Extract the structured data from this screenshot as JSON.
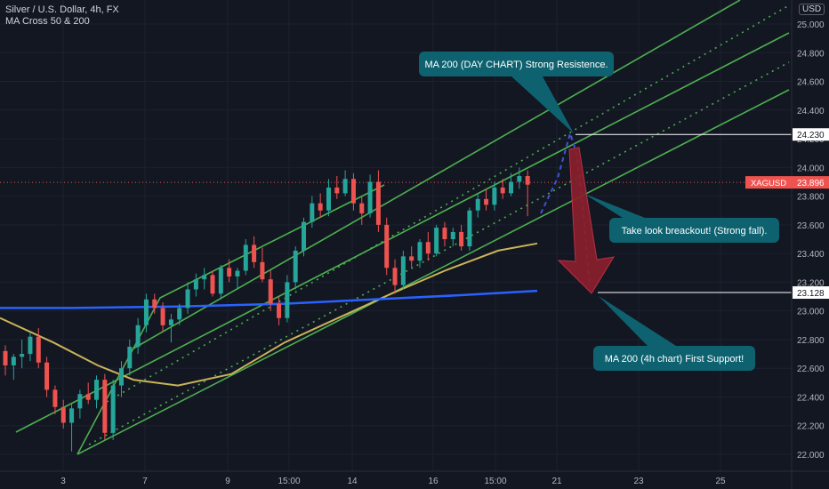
{
  "header": {
    "symbol_line": "Silver / U.S. Dollar, 4h, FX",
    "indicator_line": "MA Cross 50 & 200",
    "currency": "USD"
  },
  "colors": {
    "background": "#131722",
    "up": "#26a69a",
    "down": "#ef5350",
    "channel": "#4caf50",
    "ma_fast": "#c9b458",
    "ma_slow": "#2962ff",
    "callout": "#0e6270",
    "projection": "#4055d4",
    "arrow": "#8b1f2c"
  },
  "chart_data": {
    "type": "candlestick",
    "y_ticks": [
      "25.000",
      "24.800",
      "24.600",
      "24.400",
      "24.200",
      "24.000",
      "23.800",
      "23.600",
      "23.400",
      "23.200",
      "23.000",
      "22.800",
      "22.600",
      "22.400",
      "22.200",
      "22.000"
    ],
    "x_ticks": [
      "3",
      "7",
      "9",
      "15:00",
      "14",
      "16",
      "15:00",
      "21",
      "23",
      "25"
    ],
    "ylim": [
      21.95,
      25.1
    ],
    "price_labels": [
      {
        "label": "24.230",
        "value": 24.23
      },
      {
        "label": "23.128",
        "value": 23.128
      }
    ],
    "current_price": {
      "symbol": "XAGUSD",
      "label": "23.896",
      "value": 23.896
    },
    "candles": [
      {
        "o": 22.72,
        "h": 22.76,
        "l": 22.55,
        "c": 22.62
      },
      {
        "o": 22.62,
        "h": 22.7,
        "l": 22.52,
        "c": 22.68
      },
      {
        "o": 22.68,
        "h": 22.8,
        "l": 22.6,
        "c": 22.7
      },
      {
        "o": 22.7,
        "h": 22.85,
        "l": 22.65,
        "c": 22.82
      },
      {
        "o": 22.82,
        "h": 22.88,
        "l": 22.6,
        "c": 22.64
      },
      {
        "o": 22.64,
        "h": 22.68,
        "l": 22.4,
        "c": 22.45
      },
      {
        "o": 22.45,
        "h": 22.48,
        "l": 22.28,
        "c": 22.33
      },
      {
        "o": 22.33,
        "h": 22.38,
        "l": 22.18,
        "c": 22.22
      },
      {
        "o": 22.22,
        "h": 22.36,
        "l": 22.02,
        "c": 22.32
      },
      {
        "o": 22.32,
        "h": 22.45,
        "l": 22.25,
        "c": 22.42
      },
      {
        "o": 22.42,
        "h": 22.5,
        "l": 22.35,
        "c": 22.38
      },
      {
        "o": 22.38,
        "h": 22.55,
        "l": 22.32,
        "c": 22.52
      },
      {
        "o": 22.52,
        "h": 22.56,
        "l": 22.1,
        "c": 22.15
      },
      {
        "o": 22.15,
        "h": 22.52,
        "l": 22.1,
        "c": 22.48
      },
      {
        "o": 22.48,
        "h": 22.65,
        "l": 22.4,
        "c": 22.6
      },
      {
        "o": 22.6,
        "h": 22.8,
        "l": 22.55,
        "c": 22.75
      },
      {
        "o": 22.75,
        "h": 22.95,
        "l": 22.7,
        "c": 22.9
      },
      {
        "o": 22.9,
        "h": 23.12,
        "l": 22.85,
        "c": 23.08
      },
      {
        "o": 23.08,
        "h": 23.12,
        "l": 22.98,
        "c": 23.02
      },
      {
        "o": 23.02,
        "h": 23.06,
        "l": 22.85,
        "c": 22.9
      },
      {
        "o": 22.9,
        "h": 22.98,
        "l": 22.78,
        "c": 22.94
      },
      {
        "o": 22.94,
        "h": 23.05,
        "l": 22.9,
        "c": 23.02
      },
      {
        "o": 23.02,
        "h": 23.2,
        "l": 22.98,
        "c": 23.15
      },
      {
        "o": 23.15,
        "h": 23.26,
        "l": 23.1,
        "c": 23.22
      },
      {
        "o": 23.22,
        "h": 23.3,
        "l": 23.15,
        "c": 23.25
      },
      {
        "o": 23.25,
        "h": 23.28,
        "l": 23.1,
        "c": 23.12
      },
      {
        "o": 23.12,
        "h": 23.32,
        "l": 23.08,
        "c": 23.3
      },
      {
        "o": 23.3,
        "h": 23.36,
        "l": 23.2,
        "c": 23.24
      },
      {
        "o": 23.24,
        "h": 23.3,
        "l": 23.15,
        "c": 23.28
      },
      {
        "o": 23.28,
        "h": 23.5,
        "l": 23.25,
        "c": 23.46
      },
      {
        "o": 23.46,
        "h": 23.52,
        "l": 23.3,
        "c": 23.34
      },
      {
        "o": 23.34,
        "h": 23.44,
        "l": 23.2,
        "c": 23.22
      },
      {
        "o": 23.22,
        "h": 23.28,
        "l": 23.0,
        "c": 23.05
      },
      {
        "o": 23.05,
        "h": 23.1,
        "l": 22.9,
        "c": 22.95
      },
      {
        "o": 22.95,
        "h": 23.25,
        "l": 22.92,
        "c": 23.2
      },
      {
        "o": 23.2,
        "h": 23.45,
        "l": 23.15,
        "c": 23.42
      },
      {
        "o": 23.42,
        "h": 23.65,
        "l": 23.38,
        "c": 23.62
      },
      {
        "o": 23.62,
        "h": 23.8,
        "l": 23.58,
        "c": 23.75
      },
      {
        "o": 23.75,
        "h": 23.82,
        "l": 23.65,
        "c": 23.7
      },
      {
        "o": 23.7,
        "h": 23.92,
        "l": 23.66,
        "c": 23.86
      },
      {
        "o": 23.86,
        "h": 23.94,
        "l": 23.78,
        "c": 23.82
      },
      {
        "o": 23.82,
        "h": 23.98,
        "l": 23.8,
        "c": 23.92
      },
      {
        "o": 23.92,
        "h": 23.96,
        "l": 23.7,
        "c": 23.75
      },
      {
        "o": 23.75,
        "h": 23.8,
        "l": 23.6,
        "c": 23.68
      },
      {
        "o": 23.68,
        "h": 23.95,
        "l": 23.65,
        "c": 23.9
      },
      {
        "o": 23.9,
        "h": 23.98,
        "l": 23.55,
        "c": 23.6
      },
      {
        "o": 23.6,
        "h": 23.65,
        "l": 23.25,
        "c": 23.3
      },
      {
        "o": 23.3,
        "h": 23.36,
        "l": 23.12,
        "c": 23.18
      },
      {
        "o": 23.18,
        "h": 23.42,
        "l": 23.15,
        "c": 23.38
      },
      {
        "o": 23.38,
        "h": 23.45,
        "l": 23.3,
        "c": 23.35
      },
      {
        "o": 23.35,
        "h": 23.5,
        "l": 23.3,
        "c": 23.48
      },
      {
        "o": 23.48,
        "h": 23.55,
        "l": 23.35,
        "c": 23.4
      },
      {
        "o": 23.4,
        "h": 23.6,
        "l": 23.38,
        "c": 23.58
      },
      {
        "o": 23.58,
        "h": 23.62,
        "l": 23.45,
        "c": 23.5
      },
      {
        "o": 23.5,
        "h": 23.58,
        "l": 23.45,
        "c": 23.55
      },
      {
        "o": 23.55,
        "h": 23.6,
        "l": 23.42,
        "c": 23.45
      },
      {
        "o": 23.45,
        "h": 23.72,
        "l": 23.42,
        "c": 23.7
      },
      {
        "o": 23.7,
        "h": 23.82,
        "l": 23.65,
        "c": 23.78
      },
      {
        "o": 23.78,
        "h": 23.85,
        "l": 23.7,
        "c": 23.74
      },
      {
        "o": 23.74,
        "h": 23.9,
        "l": 23.7,
        "c": 23.86
      },
      {
        "o": 23.86,
        "h": 23.92,
        "l": 23.78,
        "c": 23.82
      },
      {
        "o": 23.82,
        "h": 23.96,
        "l": 23.8,
        "c": 23.9
      },
      {
        "o": 23.9,
        "h": 24.0,
        "l": 23.85,
        "c": 23.94
      },
      {
        "o": 23.94,
        "h": 23.98,
        "l": 23.66,
        "c": 23.88
      }
    ],
    "ma_fast": [
      [
        0,
        22.95
      ],
      [
        60,
        22.78
      ],
      [
        110,
        22.62
      ],
      [
        150,
        22.52
      ],
      [
        200,
        22.48
      ],
      [
        260,
        22.56
      ],
      [
        320,
        22.78
      ],
      [
        380,
        22.95
      ],
      [
        440,
        23.12
      ],
      [
        500,
        23.28
      ],
      [
        560,
        23.42
      ],
      [
        604,
        23.47
      ]
    ],
    "ma_slow": [
      [
        0,
        23.02
      ],
      [
        80,
        23.02
      ],
      [
        200,
        23.03
      ],
      [
        320,
        23.05
      ],
      [
        420,
        23.08
      ],
      [
        520,
        23.11
      ],
      [
        604,
        23.14
      ]
    ],
    "annotations": [
      {
        "text": "MA 200 (DAY CHART) Strong Resistence."
      },
      {
        "text": "Take look breackout! (Strong fall)."
      },
      {
        "text": "MA 200 (4h chart) First Support!"
      }
    ]
  }
}
